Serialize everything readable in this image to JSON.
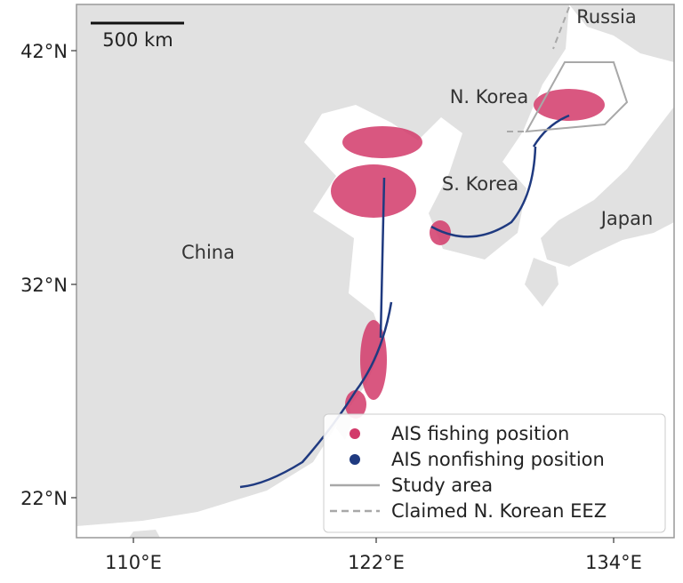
{
  "map": {
    "place_labels": [
      "Russia",
      "N. Korea",
      "S. Korea",
      "Japan",
      "China"
    ],
    "scale_bar": "500 km",
    "lat_ticks": [
      "42°N",
      "32°N",
      "22°N"
    ],
    "lon_ticks": [
      "110°E",
      "122°E",
      "134°E"
    ],
    "legend": [
      {
        "label": "AIS fishing position",
        "color": "#d23a6a",
        "style": "dot"
      },
      {
        "label": "AIS nonfishing position",
        "color": "#1f3a80",
        "style": "dot"
      },
      {
        "label": "Study area",
        "color": "#a8a8a8",
        "style": "solid"
      },
      {
        "label": "Claimed N. Korean EEZ",
        "color": "#a8a8a8",
        "style": "dashed"
      }
    ]
  }
}
